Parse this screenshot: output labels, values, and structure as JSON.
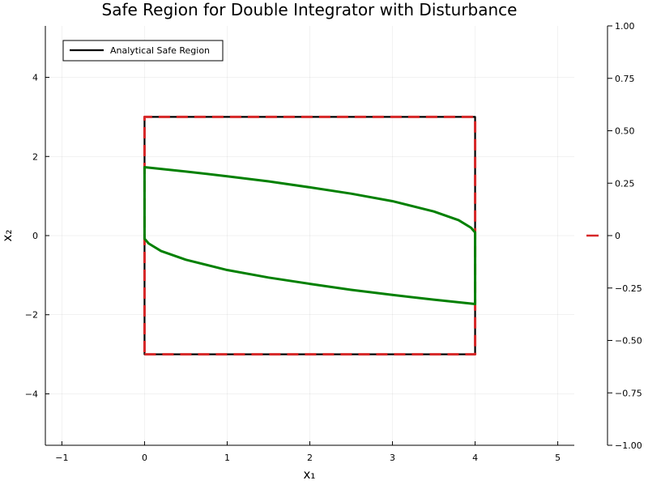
{
  "chart_data": {
    "type": "line",
    "title": "Safe Region for Double Integrator with Disturbance",
    "xlabel": "x₁",
    "ylabel": "x₂",
    "xlim": [
      -1.2,
      5.2
    ],
    "ylim": [
      -5.3,
      5.3
    ],
    "xticks": [
      -1,
      0,
      1,
      2,
      3,
      4,
      5
    ],
    "xtick_labels": [
      "−1",
      "0",
      "1",
      "2",
      "3",
      "4",
      "5"
    ],
    "yticks": [
      -4,
      -2,
      0,
      2,
      4
    ],
    "ytick_labels": [
      "−4",
      "−2",
      "0",
      "2",
      "4"
    ],
    "grid": true,
    "legend": {
      "placement": "top-left",
      "entries": [
        {
          "label": "Analytical Safe Region",
          "color": "#000000"
        }
      ]
    },
    "series": [
      {
        "name": "Analytical Safe Region",
        "color": "#000000",
        "style": "solid",
        "x": [
          0,
          4,
          4,
          0,
          0
        ],
        "y": [
          -3,
          -3,
          3,
          3,
          -3
        ]
      },
      {
        "color": "#d62728",
        "style": "dashed",
        "x": [
          0,
          4,
          4,
          0,
          0
        ],
        "y": [
          -3,
          -3,
          3,
          3,
          -3
        ]
      },
      {
        "color": "#008000",
        "style": "solid",
        "x": [
          0,
          0,
          0.5,
          1,
          1.5,
          2,
          2.5,
          3,
          3.5,
          3.8,
          3.95,
          4,
          4,
          4,
          3.5,
          3,
          2.5,
          2,
          1.5,
          1,
          0.5,
          0.2,
          0.05,
          0,
          0
        ],
        "y": [
          0,
          1.73,
          1.62,
          1.5,
          1.37,
          1.22,
          1.06,
          0.87,
          0.61,
          0.39,
          0.2,
          0.08,
          0,
          -1.73,
          -1.62,
          -1.5,
          -1.37,
          -1.22,
          -1.06,
          -0.87,
          -0.61,
          -0.39,
          -0.2,
          -0.08,
          0
        ]
      }
    ],
    "right_axis": {
      "ylim": [
        -1.0,
        1.0
      ],
      "ticks": [
        -1.0,
        -0.75,
        -0.5,
        -0.25,
        0,
        0.25,
        0.5,
        0.75,
        1.0
      ],
      "tick_labels": [
        "−1.00",
        "−0.75",
        "−0.50",
        "−0.25",
        "0",
        "0.25",
        "0.50",
        "0.75",
        "1.00"
      ],
      "marker_value": 0,
      "marker_color": "#d62728"
    }
  }
}
